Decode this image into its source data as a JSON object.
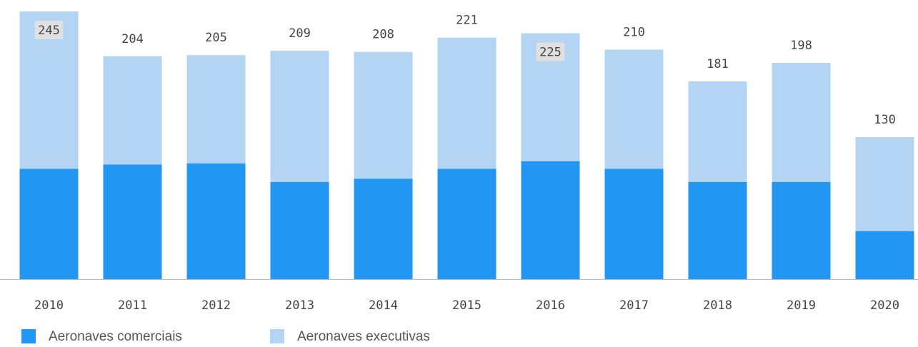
{
  "chart_data": {
    "type": "stacked-bar",
    "categories": [
      "2010",
      "2011",
      "2012",
      "2013",
      "2014",
      "2015",
      "2016",
      "2017",
      "2018",
      "2019",
      "2020"
    ],
    "series": [
      {
        "name": "Aeronaves comerciais",
        "color": "#2196f3",
        "values": [
          101,
          105,
          106,
          89,
          92,
          101,
          108,
          101,
          89,
          89,
          44
        ]
      },
      {
        "name": "Aeronaves executivas",
        "color": "#b3d4f2",
        "values": [
          144,
          99,
          99,
          120,
          116,
          120,
          117,
          109,
          92,
          109,
          86
        ]
      }
    ],
    "totals": [
      245,
      204,
      205,
      209,
      208,
      221,
      225,
      210,
      181,
      198,
      130
    ]
  }
}
